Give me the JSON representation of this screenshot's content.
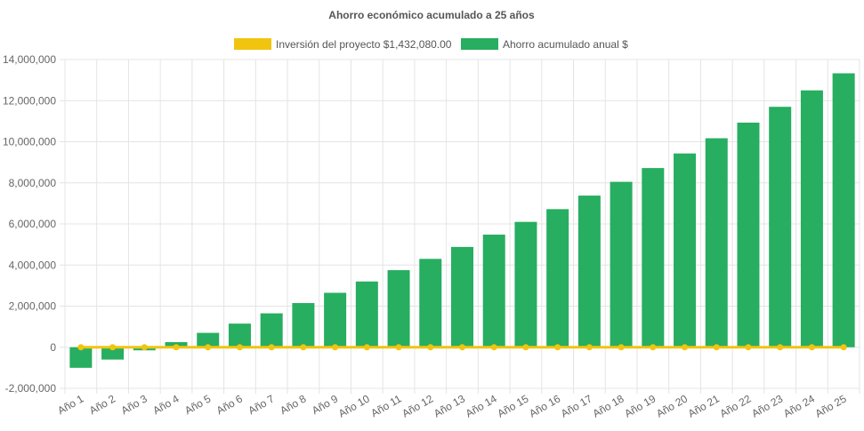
{
  "chart_data": {
    "type": "bar",
    "title": "Ahorro económico acumulado a 25 años",
    "categories": [
      "Año 1",
      "Año 2",
      "Año 3",
      "Año 4",
      "Año 5",
      "Año 6",
      "Año 7",
      "Año 8",
      "Año 9",
      "Año 10",
      "Año 11",
      "Año 12",
      "Año 13",
      "Año 14",
      "Año 15",
      "Año 16",
      "Año 17",
      "Año 18",
      "Año 19",
      "Año 20",
      "Año 21",
      "Año 22",
      "Año 23",
      "Año 24",
      "Año 25"
    ],
    "series": [
      {
        "name": "Inversión del proyecto $1,432,080.00",
        "type": "line",
        "color": "#f1c40f",
        "values": [
          0,
          0,
          0,
          0,
          0,
          0,
          0,
          0,
          0,
          0,
          0,
          0,
          0,
          0,
          0,
          0,
          0,
          0,
          0,
          0,
          0,
          0,
          0,
          0,
          0
        ]
      },
      {
        "name": "Ahorro acumulado anual $",
        "type": "bar",
        "color": "#27ae60",
        "values": [
          -1000000,
          -600000,
          -150000,
          250000,
          700000,
          1150000,
          1650000,
          2150000,
          2650000,
          3200000,
          3750000,
          4300000,
          4880000,
          5480000,
          6100000,
          6720000,
          7380000,
          8050000,
          8720000,
          9430000,
          10170000,
          10930000,
          11700000,
          12500000,
          13330000
        ]
      }
    ],
    "xlabel": "",
    "ylabel": "",
    "ylim": [
      -2000000,
      14000000
    ],
    "yticks": [
      -2000000,
      0,
      2000000,
      4000000,
      6000000,
      8000000,
      10000000,
      12000000,
      14000000
    ],
    "ytick_labels": [
      "-2,000,000",
      "0",
      "2,000,000",
      "4,000,000",
      "6,000,000",
      "8,000,000",
      "10,000,000",
      "12,000,000",
      "14,000,000"
    ],
    "grid": true,
    "legend": "top-center"
  }
}
